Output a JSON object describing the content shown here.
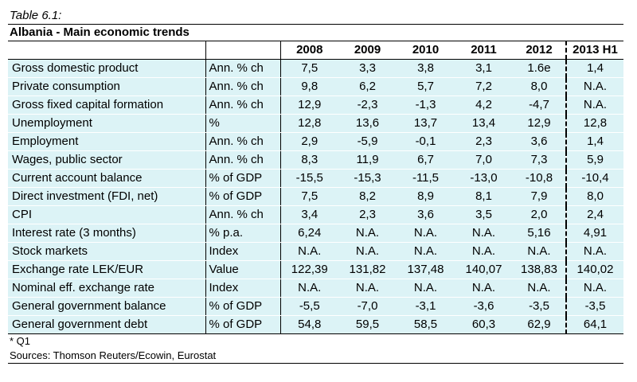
{
  "caption": "Table 6.1:",
  "title": "Albania - Main economic trends",
  "columns": [
    "2008",
    "2009",
    "2010",
    "2011",
    "2012",
    "2013 H1"
  ],
  "rows": [
    {
      "indicator": "Gross domestic product",
      "unit": "Ann. % ch",
      "values": [
        "7,5",
        "3,3",
        "3,8",
        "3,1",
        "1.6e",
        "1,4"
      ]
    },
    {
      "indicator": "Private consumption",
      "unit": "Ann. % ch",
      "values": [
        "9,8",
        "6,2",
        "5,7",
        "7,2",
        "8,0",
        "N.A."
      ]
    },
    {
      "indicator": "Gross fixed capital formation",
      "unit": "Ann. % ch",
      "values": [
        "12,9",
        "-2,3",
        "-1,3",
        "4,2",
        "-4,7",
        "N.A."
      ]
    },
    {
      "indicator": "Unemployment",
      "unit": "%",
      "values": [
        "12,8",
        "13,6",
        "13,7",
        "13,4",
        "12,9",
        "12,8"
      ]
    },
    {
      "indicator": "Employment",
      "unit": "Ann. % ch",
      "values": [
        "2,9",
        "-5,9",
        "-0,1",
        "2,3",
        "3,6",
        "1,4"
      ]
    },
    {
      "indicator": "Wages, public sector",
      "unit": "Ann. % ch",
      "values": [
        "8,3",
        "11,9",
        "6,7",
        "7,0",
        "7,3",
        "5,9"
      ]
    },
    {
      "indicator": "Current account balance",
      "unit": "% of GDP",
      "values": [
        "-15,5",
        "-15,3",
        "-11,5",
        "-13,0",
        "-10,8",
        "-10,4"
      ]
    },
    {
      "indicator": "Direct investment (FDI, net)",
      "unit": "% of GDP",
      "values": [
        "7,5",
        "8,2",
        "8,9",
        "8,1",
        "7,9",
        "8,0"
      ]
    },
    {
      "indicator": "CPI",
      "unit": "Ann. % ch",
      "values": [
        "3,4",
        "2,3",
        "3,6",
        "3,5",
        "2,0",
        "2,4"
      ]
    },
    {
      "indicator": "Interest rate (3 months)",
      "unit": "% p.a.",
      "values": [
        "6,24",
        "N.A.",
        "N.A.",
        "N.A.",
        "5,16",
        "4,91"
      ]
    },
    {
      "indicator": "Stock markets",
      "unit": "Index",
      "values": [
        "N.A.",
        "N.A.",
        "N.A.",
        "N.A.",
        "N.A.",
        "N.A."
      ]
    },
    {
      "indicator": "Exchange rate LEK/EUR",
      "unit": "Value",
      "values": [
        "122,39",
        "131,82",
        "137,48",
        "140,07",
        "138,83",
        "140,02"
      ]
    },
    {
      "indicator": "Nominal eff. exchange rate",
      "unit": "Index",
      "values": [
        "N.A.",
        "N.A.",
        "N.A.",
        "N.A.",
        "N.A.",
        "N.A."
      ]
    },
    {
      "indicator": "General government balance",
      "unit": "% of GDP",
      "values": [
        "-5,5",
        "-7,0",
        "-3,1",
        "-3,6",
        "-3,5",
        "-3,5"
      ]
    },
    {
      "indicator": "General government debt",
      "unit": "% of GDP",
      "values": [
        "54,8",
        "59,5",
        "58,5",
        "60,3",
        "62,9",
        "64,1"
      ]
    }
  ],
  "note": "* Q1",
  "source": "Sources: Thomson Reuters/Ecowin, Eurostat"
}
